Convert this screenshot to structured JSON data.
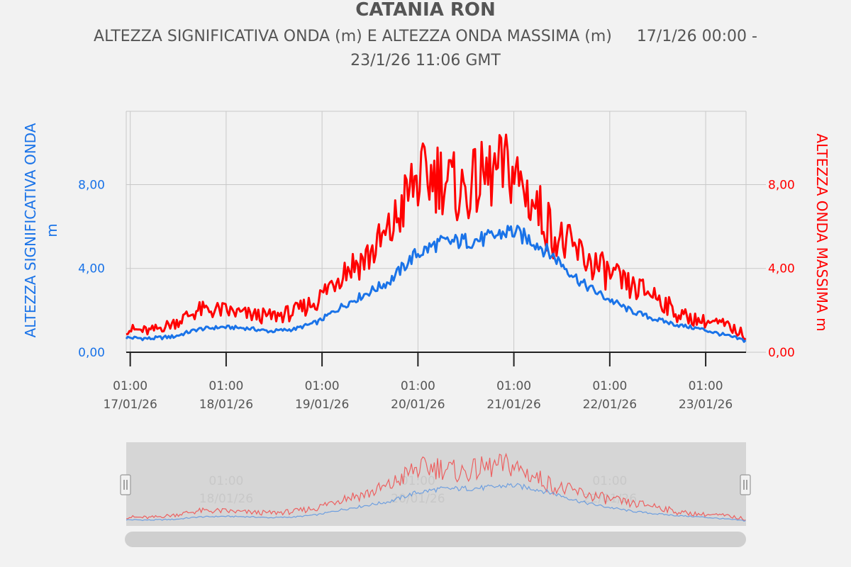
{
  "chart_data": {
    "type": "line",
    "title": "CATANIA RON",
    "subtitle_line1": "ALTEZZA SIGNIFICATIVA ONDA (m) E ALTEZZA ONDA MASSIMA (m)     17/1/26 00:00 -",
    "subtitle_line2": "23/1/26 11:06 GMT",
    "y_left_label_line1": "ALTEZZA SIGNIFICATIVA ONDA",
    "y_left_label_line2": "m",
    "y_right_label": "ALTEZZA ONDA MASSIMA m",
    "x_range": [
      "2026-01-17T00:00",
      "2026-01-23T11:06"
    ],
    "ylim": [
      0,
      11.5
    ],
    "y_ticks": [
      {
        "value": 0,
        "label": "0,00"
      },
      {
        "value": 4,
        "label": "4,00"
      },
      {
        "value": 8,
        "label": "8,00"
      }
    ],
    "x_ticks": [
      {
        "time": "2026-01-17T01:00",
        "line1": "01:00",
        "line2": "17/01/26"
      },
      {
        "time": "2026-01-18T01:00",
        "line1": "01:00",
        "line2": "18/01/26"
      },
      {
        "time": "2026-01-19T01:00",
        "line1": "01:00",
        "line2": "19/01/26"
      },
      {
        "time": "2026-01-20T01:00",
        "line1": "01:00",
        "line2": "20/01/26"
      },
      {
        "time": "2026-01-21T01:00",
        "line1": "01:00",
        "line2": "21/01/26"
      },
      {
        "time": "2026-01-22T01:00",
        "line1": "01:00",
        "line2": "22/01/26"
      },
      {
        "time": "2026-01-23T01:00",
        "line1": "01:00",
        "line2": "23/01/26"
      }
    ],
    "navigator_labels": [
      {
        "time": "2026-01-18T01:00",
        "line1": "01:00",
        "line2": "18/01/26"
      },
      {
        "time": "2026-01-20T01:00",
        "line1": "01:00",
        "line2": "20/01/26"
      },
      {
        "time": "2026-01-22T01:00",
        "line1": "01:00",
        "line2": "22/01/26"
      }
    ],
    "grid": true,
    "series": [
      {
        "color": "#1a73e8",
        "axis": "left",
        "points": [
          [
            "2026-01-17T00:00",
            0.7
          ],
          [
            "2026-01-17T06:00",
            0.65
          ],
          [
            "2026-01-17T12:00",
            0.75
          ],
          [
            "2026-01-17T18:00",
            1.1
          ],
          [
            "2026-01-18T00:00",
            1.2
          ],
          [
            "2026-01-18T06:00",
            1.15
          ],
          [
            "2026-01-18T12:00",
            1.0
          ],
          [
            "2026-01-18T18:00",
            1.1
          ],
          [
            "2026-01-19T00:00",
            1.45
          ],
          [
            "2026-01-19T06:00",
            2.2
          ],
          [
            "2026-01-19T12:00",
            2.8
          ],
          [
            "2026-01-19T18:00",
            3.4
          ],
          [
            "2026-01-20T00:00",
            4.6
          ],
          [
            "2026-01-20T06:00",
            5.2
          ],
          [
            "2026-01-20T12:00",
            5.3
          ],
          [
            "2026-01-20T18:00",
            5.4
          ],
          [
            "2026-01-21T00:00",
            5.8
          ],
          [
            "2026-01-21T06:00",
            5.3
          ],
          [
            "2026-01-21T12:00",
            4.4
          ],
          [
            "2026-01-21T18:00",
            3.3
          ],
          [
            "2026-01-22T00:00",
            2.6
          ],
          [
            "2026-01-22T06:00",
            2.0
          ],
          [
            "2026-01-22T12:00",
            1.6
          ],
          [
            "2026-01-22T18:00",
            1.3
          ],
          [
            "2026-01-23T00:00",
            1.1
          ],
          [
            "2026-01-23T06:00",
            0.8
          ],
          [
            "2026-01-23T11:00",
            0.55
          ]
        ]
      },
      {
        "color": "#ff0000",
        "axis": "right",
        "points": [
          [
            "2026-01-17T00:00",
            1.1
          ],
          [
            "2026-01-17T06:00",
            1.0
          ],
          [
            "2026-01-17T12:00",
            1.4
          ],
          [
            "2026-01-17T18:00",
            2.0
          ],
          [
            "2026-01-18T00:00",
            2.0
          ],
          [
            "2026-01-18T06:00",
            1.8
          ],
          [
            "2026-01-18T12:00",
            1.7
          ],
          [
            "2026-01-18T18:00",
            1.9
          ],
          [
            "2026-01-19T00:00",
            2.5
          ],
          [
            "2026-01-19T06:00",
            3.9
          ],
          [
            "2026-01-19T12:00",
            4.5
          ],
          [
            "2026-01-19T18:00",
            5.7
          ],
          [
            "2026-01-20T00:00",
            8.1
          ],
          [
            "2026-01-20T06:00",
            8.5
          ],
          [
            "2026-01-20T12:00",
            7.6
          ],
          [
            "2026-01-20T18:00",
            8.4
          ],
          [
            "2026-01-21T00:00",
            8.8
          ],
          [
            "2026-01-21T06:00",
            7.1
          ],
          [
            "2026-01-21T12:00",
            5.4
          ],
          [
            "2026-01-21T18:00",
            4.6
          ],
          [
            "2026-01-22T00:00",
            3.8
          ],
          [
            "2026-01-22T06:00",
            3.1
          ],
          [
            "2026-01-22T12:00",
            2.8
          ],
          [
            "2026-01-22T18:00",
            1.8
          ],
          [
            "2026-01-23T00:00",
            1.5
          ],
          [
            "2026-01-23T06:00",
            1.3
          ],
          [
            "2026-01-23T11:00",
            0.8
          ]
        ]
      }
    ]
  },
  "colors": {
    "left_axis": "#1a73e8",
    "right_axis": "#ff0000",
    "grid": "#c8c8c8",
    "text": "#555555"
  },
  "icons": {
    "navigator_left_handle": "grip-handle-icon",
    "navigator_right_handle": "grip-handle-icon"
  }
}
